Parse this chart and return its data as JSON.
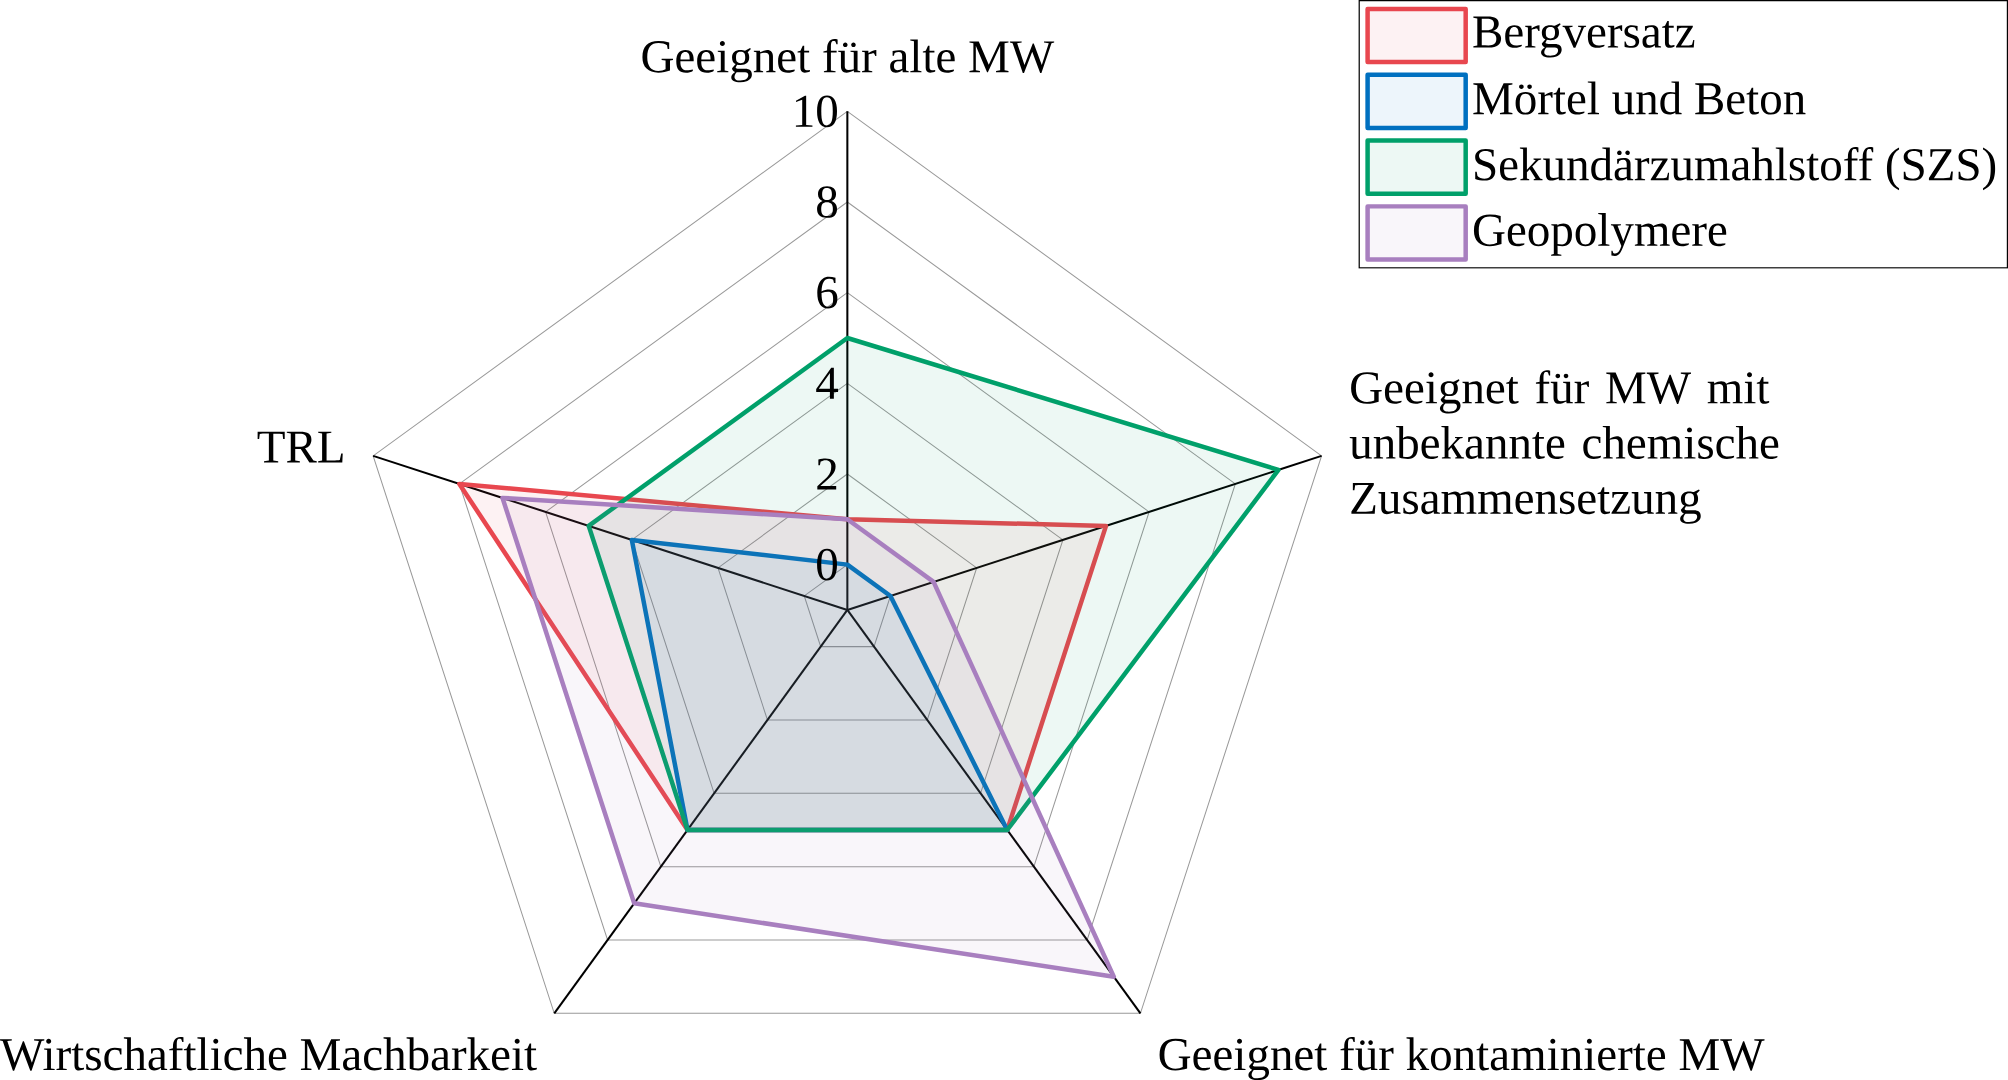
{
  "chart_data": {
    "type": "radar",
    "categories": [
      "Geeignet für alte MW",
      "Geeignet für MW mit unbekannte chemische Zusammensetzung",
      "Geeignet für kontaminierte MW",
      "Wirtschaftliche Machbarkeit",
      "TRL"
    ],
    "series": [
      {
        "name": "Bergversatz",
        "color": "#e8474f",
        "values": [
          1,
          5,
          5,
          5,
          8
        ]
      },
      {
        "name": "Mörtel und Beton",
        "color": "#0070c0",
        "values": [
          0,
          0,
          5,
          5,
          4
        ]
      },
      {
        "name": "Sekundärzumahlstoff (SZS)",
        "color": "#00a06a",
        "values": [
          5,
          9,
          5,
          5,
          5
        ]
      },
      {
        "name": "Geopolymere",
        "color": "#a87fbf",
        "values": [
          1,
          1,
          9,
          7,
          7
        ]
      }
    ],
    "ylim": [
      -1,
      10
    ],
    "yticks": [
      0,
      2,
      4,
      6,
      8,
      10
    ],
    "grid": true,
    "legend": "top right",
    "marker": "none",
    "line_style": "solid"
  }
}
